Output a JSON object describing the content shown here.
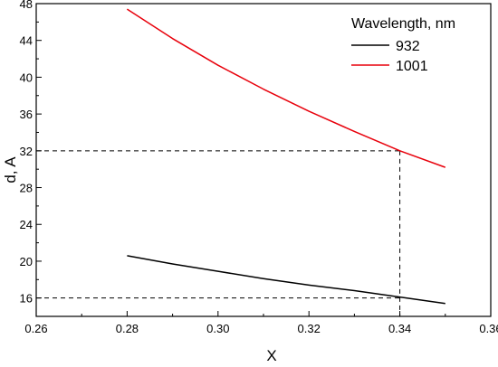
{
  "chart_data": {
    "type": "line",
    "xlabel": "X",
    "ylabel": "d, A",
    "xlim": [
      0.26,
      0.36
    ],
    "ylim": [
      14,
      48
    ],
    "x_ticks": [
      0.26,
      0.28,
      0.3,
      0.32,
      0.34,
      0.36
    ],
    "x_tick_labels": [
      "0.26",
      "0.28",
      "0.30",
      "0.32",
      "0.34",
      "0.36"
    ],
    "y_ticks": [
      16,
      20,
      24,
      28,
      32,
      36,
      40,
      44,
      48
    ],
    "y_tick_labels": [
      "16",
      "20",
      "24",
      "28",
      "32",
      "36",
      "40",
      "44",
      "48"
    ],
    "grid": false,
    "legend": {
      "title": "Wavelength, nm",
      "placement": "top-right"
    },
    "series": [
      {
        "name": "932",
        "color": "#000000",
        "x": [
          0.28,
          0.29,
          0.3,
          0.31,
          0.32,
          0.33,
          0.34,
          0.35
        ],
        "y": [
          20.6,
          19.7,
          18.9,
          18.1,
          17.4,
          16.8,
          16.1,
          15.4
        ]
      },
      {
        "name": "1001",
        "color": "#e8000b",
        "x": [
          0.28,
          0.29,
          0.3,
          0.31,
          0.32,
          0.33,
          0.34,
          0.35
        ],
        "y": [
          47.4,
          44.2,
          41.3,
          38.7,
          36.3,
          34.1,
          32.0,
          30.2
        ]
      }
    ],
    "reference_lines": [
      {
        "x": 0.34,
        "y": 32,
        "style": "dashed"
      },
      {
        "x": 0.34,
        "y": 16,
        "style": "dashed"
      }
    ]
  }
}
